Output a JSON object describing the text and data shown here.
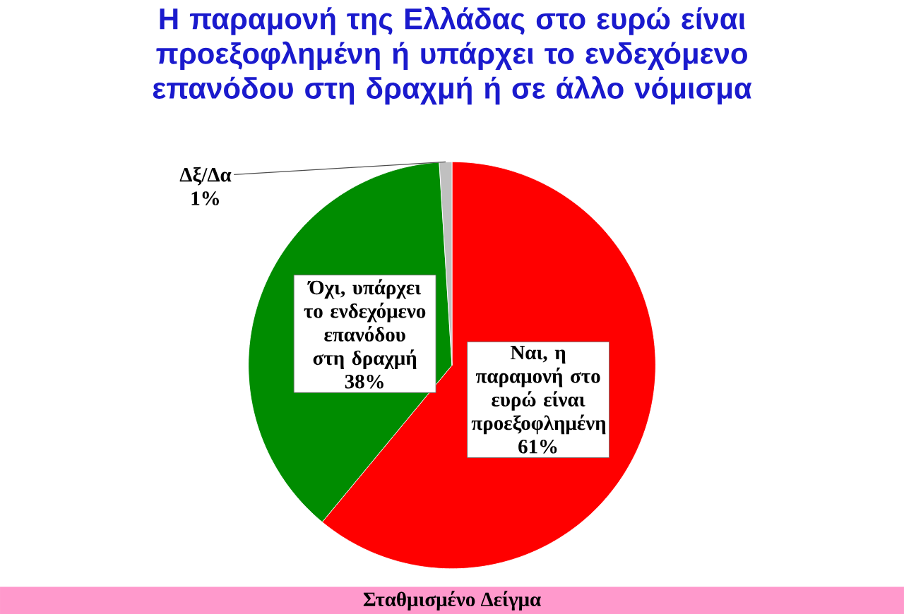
{
  "chart_data": {
    "type": "pie",
    "title": "Η παραμονή της Ελλάδας στο ευρώ είναι προεξοφλημένη ή υπάρχει το ενδεχόμενο επανόδου στη δραχμή ή σε άλλο νόμισμα",
    "categories": [
      "Ναι, η παραμονή στο ευρώ είναι προεξοφλημένη",
      "Όχι, υπάρχει το ενδεχόμενο επανόδου στη δραχμή",
      "Δξ/Δα"
    ],
    "values": [
      61,
      38,
      1
    ],
    "colors": [
      "#ff0000",
      "#008c00",
      "#c0c0c0"
    ],
    "value_labels": [
      "61%",
      "38%",
      "1%"
    ],
    "annotations": [
      "Σταθμισμένο Δείγμα"
    ]
  }
}
